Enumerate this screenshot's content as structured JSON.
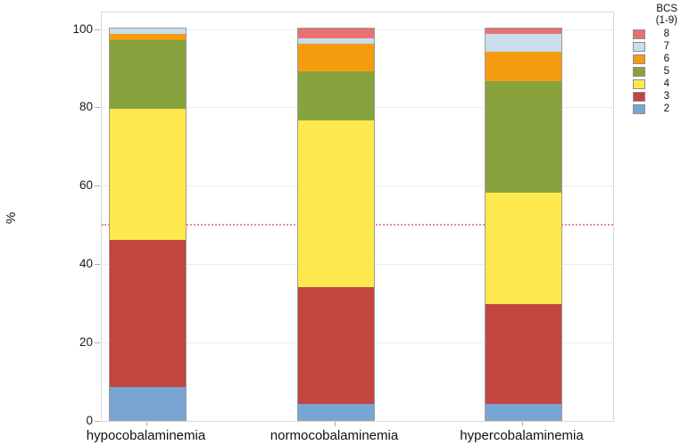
{
  "chart_data": {
    "type": "bar",
    "subtype": "stacked-percent",
    "title": "",
    "xlabel": "",
    "ylabel": "%",
    "ylim": [
      0,
      100
    ],
    "yticks": [
      0,
      20,
      40,
      60,
      80,
      100
    ],
    "grid": "horizontal",
    "reference_line": {
      "y": 50,
      "style": "dotted",
      "color": "#e07a7a"
    },
    "categories": [
      "hypocobalaminemia",
      "normocobalaminemia",
      "hypercobalaminemia"
    ],
    "legend": {
      "title": "BCS",
      "subtitle": "(1-9)",
      "position": "right",
      "entries": [
        "8",
        "7",
        "6",
        "5",
        "4",
        "3",
        "2"
      ]
    },
    "series": [
      {
        "name": "8",
        "color": "#e97072",
        "values": [
          0,
          2.5,
          1.5
        ]
      },
      {
        "name": "7",
        "color": "#c9dded",
        "values": [
          1.5,
          1.5,
          4.5
        ]
      },
      {
        "name": "6",
        "color": "#f59c11",
        "values": [
          1.5,
          7.0,
          7.5
        ]
      },
      {
        "name": "5",
        "color": "#89a23e",
        "values": [
          17.5,
          12.5,
          28.5
        ]
      },
      {
        "name": "4",
        "color": "#fde94d",
        "values": [
          33.5,
          42.5,
          28.5
        ]
      },
      {
        "name": "3",
        "color": "#c2453f",
        "values": [
          37.5,
          30.0,
          25.5
        ]
      },
      {
        "name": "2",
        "color": "#79a5d5",
        "values": [
          8.5,
          4.0,
          4.0
        ]
      }
    ]
  }
}
